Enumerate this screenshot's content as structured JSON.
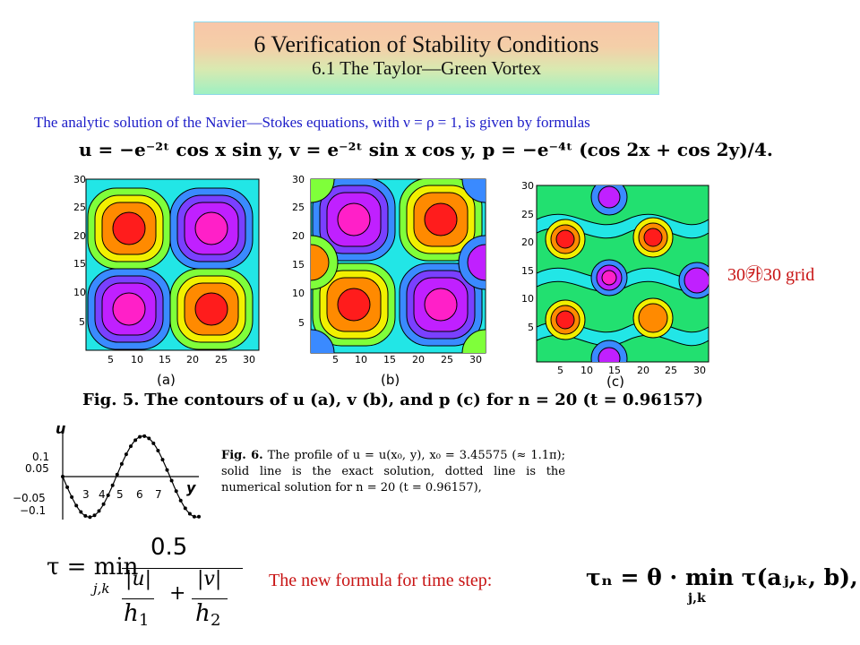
{
  "header": {
    "title": "6 Verification of Stability Conditions",
    "subtitle": "6.1 The Taylor—Green Vortex"
  },
  "intro_text": "The analytic solution of the Navier—Stokes equations, with ν = ρ = 1, is given by formulas",
  "formula_solution": "u = −e⁻²ᵗ cos x sin y,  v = e⁻²ᵗ sin x cos y,  p = −e⁻⁴ᵗ (cos 2x + cos 2y)/4.",
  "contour_plots": {
    "y_ticks": [
      "30",
      "25",
      "20",
      "15",
      "10",
      "5"
    ],
    "x_ticks": [
      "5",
      "10",
      "15",
      "20",
      "25",
      "30"
    ],
    "labels": [
      "(a)",
      "(b)",
      "(c)"
    ]
  },
  "grid_note": "30㉸30 grid",
  "fig5_label": "Fig. 5.",
  "fig5_caption": "The contours of u (a), v (b), and p (c) for n = 20 (t = 0.96157)",
  "profile_plot": {
    "axis_u": "u",
    "axis_y": "y",
    "y_ticks": [
      "0.1",
      "0.05",
      "−0.05",
      "−0.1"
    ],
    "x_ticks": [
      "3",
      "4",
      "5",
      "6",
      "7"
    ],
    "chart_data": {
      "type": "line",
      "title": "",
      "xlabel": "y",
      "ylabel": "u",
      "xlim": [
        0,
        7.6
      ],
      "ylim": [
        -0.12,
        0.12
      ],
      "series": [
        {
          "values_expr": "u(y) = -0.113 sin(y)",
          "x": [
            0,
            0.5,
            1,
            1.5,
            2,
            2.5,
            3,
            3.5,
            4,
            4.5,
            5,
            5.5,
            6,
            6.5,
            7,
            7.5
          ],
          "y": [
            0,
            -0.054,
            -0.095,
            -0.113,
            -0.103,
            -0.068,
            -0.016,
            0.04,
            0.086,
            0.11,
            0.108,
            0.08,
            0.032,
            -0.024,
            -0.074,
            -0.106
          ]
        }
      ]
    }
  },
  "fig6_label": "Fig. 6.",
  "fig6_caption": "The profile of u = u(x₀, y), x₀ = 3.45575 (≈ 1.1π); solid line is the exact solution, dotted line is the numerical solution for n = 20 (t = 0.96157),",
  "tau_formula": {
    "lhs": "τ = min",
    "sub": "j,k",
    "numerator": "0.5",
    "u_term": "|u|",
    "h1": "h",
    "h1_sub": "1",
    "plus": "+",
    "v_term": "|v|",
    "h2": "h",
    "h2_sub": "2"
  },
  "time_step_label": "The new formula for time step:",
  "time_step_formula": "τₙ = θ · min τ(aⱼ,ₖ, b),",
  "time_step_sub": "j,k"
}
